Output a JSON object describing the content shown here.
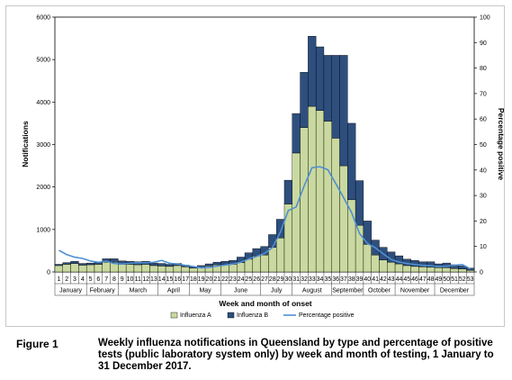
{
  "chart_data": {
    "type": "bar",
    "title": "",
    "xlabel": "Week and month of onset",
    "ylabel": "Notifications",
    "y2label": "Percentage positive",
    "ylim": [
      0,
      6000
    ],
    "y2lim": [
      0,
      100
    ],
    "yticks": [
      0,
      1000,
      2000,
      3000,
      4000,
      5000,
      6000
    ],
    "y2ticks": [
      0,
      10,
      20,
      30,
      40,
      50,
      60,
      70,
      80,
      90,
      100
    ],
    "stacked": true,
    "legend_position": "bottom",
    "categories": [
      "1",
      "2",
      "3",
      "4",
      "5",
      "6",
      "7",
      "8",
      "9",
      "10",
      "11",
      "12",
      "13",
      "14",
      "15",
      "16",
      "17",
      "18",
      "19",
      "20",
      "21",
      "22",
      "23",
      "24",
      "25",
      "26",
      "27",
      "28",
      "29",
      "30",
      "31",
      "32",
      "33",
      "34",
      "35",
      "36",
      "37",
      "38",
      "39",
      "40",
      "41",
      "42",
      "43",
      "44",
      "45",
      "46",
      "47",
      "48",
      "49",
      "50",
      "51",
      "52",
      "53"
    ],
    "months": [
      {
        "name": "January",
        "start": 1,
        "end": 4
      },
      {
        "name": "February",
        "start": 5,
        "end": 8
      },
      {
        "name": "March",
        "start": 9,
        "end": 13
      },
      {
        "name": "April",
        "start": 14,
        "end": 17
      },
      {
        "name": "May",
        "start": 18,
        "end": 21
      },
      {
        "name": "June",
        "start": 22,
        "end": 26
      },
      {
        "name": "July",
        "start": 27,
        "end": 30
      },
      {
        "name": "August",
        "start": 31,
        "end": 35
      },
      {
        "name": "September",
        "start": 36,
        "end": 39
      },
      {
        "name": "October",
        "start": 40,
        "end": 43
      },
      {
        "name": "November",
        "start": 44,
        "end": 48
      },
      {
        "name": "December",
        "start": 49,
        "end": 53
      }
    ],
    "series": [
      {
        "name": "Influenza A",
        "color": "#c9d9a0",
        "kind": "bar",
        "values": [
          150,
          180,
          200,
          160,
          170,
          180,
          230,
          230,
          180,
          180,
          170,
          180,
          150,
          140,
          130,
          150,
          120,
          90,
          110,
          140,
          170,
          170,
          180,
          220,
          300,
          380,
          400,
          580,
          800,
          1600,
          2800,
          3400,
          3900,
          3800,
          3550,
          3150,
          2500,
          1700,
          1100,
          650,
          400,
          280,
          230,
          190,
          150,
          130,
          120,
          110,
          100,
          100,
          80,
          70,
          40
        ]
      },
      {
        "name": "Influenza B",
        "color": "#2e4f7e",
        "kind": "bar",
        "values": [
          30,
          40,
          50,
          40,
          40,
          60,
          80,
          80,
          80,
          70,
          70,
          70,
          60,
          60,
          50,
          50,
          40,
          30,
          40,
          50,
          60,
          80,
          90,
          130,
          150,
          170,
          200,
          300,
          440,
          560,
          930,
          1300,
          1650,
          1500,
          1550,
          1950,
          2600,
          1800,
          1050,
          550,
          350,
          300,
          240,
          190,
          150,
          140,
          120,
          130,
          90,
          110,
          90,
          70,
          50
        ]
      },
      {
        "name": "Percentage positive",
        "color": "#4f8fd0",
        "kind": "line",
        "axis": "right",
        "values": [
          8.5,
          6.8,
          5.8,
          5.3,
          4.3,
          3.8,
          4.2,
          3.3,
          3.1,
          3.4,
          3.6,
          3.6,
          3.8,
          4.5,
          3.4,
          3.1,
          2.6,
          2.1,
          1.6,
          1.8,
          2.3,
          2.7,
          3.1,
          3.8,
          5.1,
          6.1,
          7.3,
          9.6,
          15.6,
          24.1,
          25.5,
          33.7,
          40.9,
          41.3,
          40.1,
          34.7,
          29.1,
          23.3,
          15.1,
          11.2,
          9.5,
          7.1,
          4.9,
          3.9,
          3.3,
          2.9,
          2.6,
          2.4,
          2.1,
          2.3,
          2.6,
          2.9,
          1.2
        ]
      }
    ]
  },
  "caption": {
    "label": "Figure 1",
    "text": "Weekly influenza notifications in Queensland by type and percentage of positive tests (public laboratory system only) by week and month of testing, 1 January to 31 December 2017."
  }
}
